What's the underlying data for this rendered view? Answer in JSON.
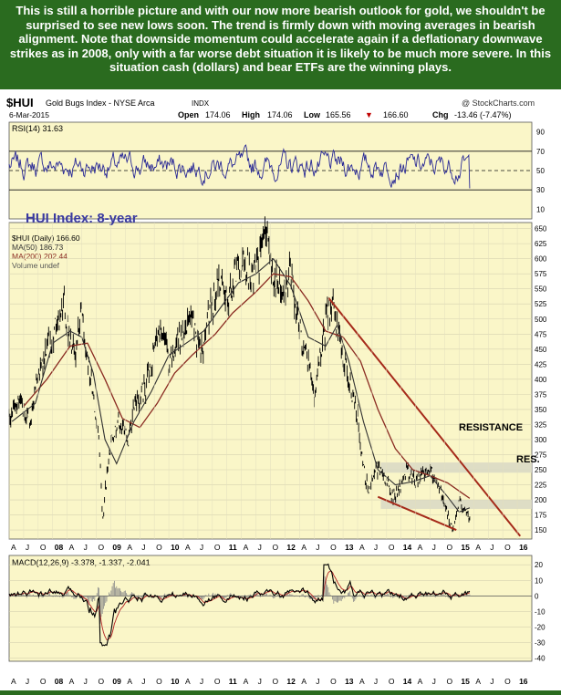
{
  "headline": "This is still a horrible picture and with our now more bearish outlook for gold, we shouldn't be surprised to see new lows soon. The trend is firmly down with moving averages in bearish alignment. Note that downside momentum could accelerate again if a deflationary downwave strikes as in 2008, only with a far worse debt situation it is likely to be much more severe. In this situation cash (dollars) and bear ETFs are the winning plays.",
  "header": {
    "symbol": "$HUI",
    "name": "Gold Bugs Index - NYSE Arca",
    "exchange": "INDX",
    "watermark": "@ StockCharts.com",
    "date": "6-Mar-2015",
    "open_label": "Open",
    "open": "174.06",
    "high_label": "High",
    "high": "174.06",
    "low_label": "Low",
    "low": "165.56",
    "close": "166.60",
    "chg_label": "Chg",
    "chg": "-13.46 (-7.47%)",
    "chg_arrow": "▼"
  },
  "colors": {
    "panel_bg": "#faf6c8",
    "price": "#000000",
    "ma50": "#303030",
    "ma200": "#8a2b22",
    "rsi": "#2a2a96",
    "trendline": "#a52a1a",
    "zone": "#d8d8c4",
    "outer": "#2a6b1f"
  },
  "chart_data": [
    {
      "type": "line",
      "title": "RSI(14) 31.63",
      "yticks": [
        90,
        70,
        50,
        30,
        10
      ],
      "ylim": [
        0,
        100
      ],
      "reference_lines": [
        70,
        50,
        30
      ],
      "series": [
        {
          "name": "RSI(14)",
          "last": 31.63
        }
      ]
    },
    {
      "type": "line",
      "title": "HUI Index: 8-year",
      "legend": [
        "$HUI (Daily) 166.60",
        "MA(50) 186.73",
        "MA(200) 202.44",
        "Volume undef"
      ],
      "yticks": [
        650,
        625,
        600,
        575,
        550,
        525,
        500,
        475,
        450,
        425,
        400,
        375,
        350,
        325,
        300,
        275,
        250,
        225,
        200,
        175,
        150
      ],
      "ylim": [
        135,
        660
      ],
      "xlabels": [
        "A",
        "J",
        "O",
        "08",
        "A",
        "J",
        "O",
        "09",
        "A",
        "J",
        "O",
        "10",
        "A",
        "J",
        "O",
        "11",
        "A",
        "J",
        "O",
        "12",
        "A",
        "J",
        "O",
        "13",
        "A",
        "J",
        "O",
        "14",
        "A",
        "J",
        "O",
        "15",
        "A",
        "J",
        "O",
        "16"
      ],
      "x_range": [
        2007.25,
        2016.25
      ],
      "annotations": [
        {
          "text": "RESISTANCE",
          "zone": [
            245,
            262
          ]
        },
        {
          "text": "RES.",
          "zone": [
            185,
            200
          ]
        }
      ],
      "series": [
        {
          "name": "$HUI (Daily)",
          "points": [
            [
              2007.25,
              335
            ],
            [
              2007.4,
              370
            ],
            [
              2007.6,
              330
            ],
            [
              2007.75,
              400
            ],
            [
              2007.95,
              460
            ],
            [
              2008.1,
              495
            ],
            [
              2008.2,
              520
            ],
            [
              2008.3,
              455
            ],
            [
              2008.4,
              450
            ],
            [
              2008.5,
              505
            ],
            [
              2008.6,
              440
            ],
            [
              2008.7,
              370
            ],
            [
              2008.8,
              300
            ],
            [
              2008.86,
              160
            ],
            [
              2008.9,
              210
            ],
            [
              2009.0,
              290
            ],
            [
              2009.15,
              330
            ],
            [
              2009.3,
              300
            ],
            [
              2009.45,
              370
            ],
            [
              2009.6,
              385
            ],
            [
              2009.75,
              450
            ],
            [
              2009.9,
              490
            ],
            [
              2010.0,
              420
            ],
            [
              2010.2,
              470
            ],
            [
              2010.4,
              500
            ],
            [
              2010.55,
              440
            ],
            [
              2010.7,
              510
            ],
            [
              2010.85,
              560
            ],
            [
              2011.0,
              525
            ],
            [
              2011.15,
              575
            ],
            [
              2011.3,
              605
            ],
            [
              2011.45,
              560
            ],
            [
              2011.6,
              620
            ],
            [
              2011.68,
              635
            ],
            [
              2011.8,
              580
            ],
            [
              2011.95,
              535
            ],
            [
              2012.1,
              575
            ],
            [
              2012.25,
              490
            ],
            [
              2012.4,
              420
            ],
            [
              2012.5,
              375
            ],
            [
              2012.6,
              430
            ],
            [
              2012.75,
              520
            ],
            [
              2012.85,
              510
            ],
            [
              2012.95,
              460
            ],
            [
              2013.1,
              400
            ],
            [
              2013.25,
              340
            ],
            [
              2013.35,
              250
            ],
            [
              2013.45,
              215
            ],
            [
              2013.55,
              255
            ],
            [
              2013.7,
              245
            ],
            [
              2013.85,
              205
            ],
            [
              2013.95,
              215
            ],
            [
              2014.1,
              250
            ],
            [
              2014.25,
              230
            ],
            [
              2014.4,
              245
            ],
            [
              2014.5,
              250
            ],
            [
              2014.6,
              230
            ],
            [
              2014.7,
              210
            ],
            [
              2014.8,
              175
            ],
            [
              2014.9,
              150
            ],
            [
              2015.0,
              200
            ],
            [
              2015.08,
              180
            ],
            [
              2015.18,
              166.6
            ]
          ]
        },
        {
          "name": "MA(50)",
          "points": [
            [
              2007.3,
              330
            ],
            [
              2007.7,
              360
            ],
            [
              2008.0,
              460
            ],
            [
              2008.3,
              480
            ],
            [
              2008.5,
              470
            ],
            [
              2008.7,
              410
            ],
            [
              2008.9,
              300
            ],
            [
              2009.1,
              260
            ],
            [
              2009.4,
              330
            ],
            [
              2009.7,
              380
            ],
            [
              2010.0,
              440
            ],
            [
              2010.3,
              460
            ],
            [
              2010.6,
              480
            ],
            [
              2010.9,
              520
            ],
            [
              2011.2,
              560
            ],
            [
              2011.5,
              575
            ],
            [
              2011.8,
              600
            ],
            [
              2012.1,
              555
            ],
            [
              2012.4,
              470
            ],
            [
              2012.7,
              455
            ],
            [
              2012.9,
              490
            ],
            [
              2013.1,
              430
            ],
            [
              2013.35,
              330
            ],
            [
              2013.6,
              250
            ],
            [
              2013.9,
              225
            ],
            [
              2014.2,
              230
            ],
            [
              2014.5,
              240
            ],
            [
              2014.8,
              205
            ],
            [
              2015.0,
              180
            ],
            [
              2015.18,
              186.73
            ]
          ]
        },
        {
          "name": "MA(200)",
          "points": [
            [
              2007.5,
              355
            ],
            [
              2007.9,
              400
            ],
            [
              2008.3,
              455
            ],
            [
              2008.6,
              460
            ],
            [
              2008.9,
              400
            ],
            [
              2009.2,
              335
            ],
            [
              2009.5,
              320
            ],
            [
              2009.8,
              360
            ],
            [
              2010.1,
              410
            ],
            [
              2010.4,
              440
            ],
            [
              2010.8,
              475
            ],
            [
              2011.1,
              510
            ],
            [
              2011.5,
              545
            ],
            [
              2011.8,
              575
            ],
            [
              2012.1,
              570
            ],
            [
              2012.4,
              530
            ],
            [
              2012.7,
              480
            ],
            [
              2013.0,
              470
            ],
            [
              2013.3,
              430
            ],
            [
              2013.6,
              350
            ],
            [
              2013.9,
              285
            ],
            [
              2014.2,
              250
            ],
            [
              2014.5,
              240
            ],
            [
              2014.8,
              228
            ],
            [
              2015.18,
              202.44
            ]
          ]
        }
      ],
      "trendlines": [
        [
          [
            2012.75,
            535
          ],
          [
            2016.05,
            140
          ]
        ],
        [
          [
            2013.6,
            205
          ],
          [
            2014.95,
            150
          ]
        ]
      ]
    },
    {
      "type": "line",
      "title": "MACD(12,26,9) -3.378, -1.337, -2.041",
      "yticks": [
        20,
        10,
        0,
        -10,
        -20,
        -30,
        -40
      ],
      "ylim": [
        -42,
        26
      ],
      "series": [
        {
          "name": "MACD(12,26,9)",
          "values": [
            -3.378,
            -1.337,
            -2.041
          ]
        }
      ]
    }
  ]
}
